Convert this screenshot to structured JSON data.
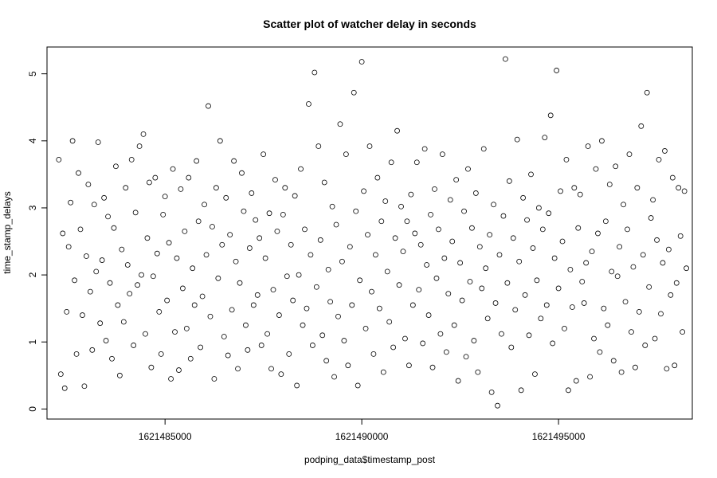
{
  "chart_data": {
    "type": "scatter",
    "title": "Scatter plot of watcher delay in seconds",
    "xlabel": "podping_data$timestamp_post",
    "ylabel": "time_stamp_delays",
    "xlim": [
      1621482000,
      1621498400
    ],
    "ylim": [
      -0.15,
      5.4
    ],
    "x_ticks": [
      1621485000,
      1621490000,
      1621495000
    ],
    "x_tick_labels": [
      "1621485000",
      "1621490000",
      "1621495000"
    ],
    "y_ticks": [
      0,
      1,
      2,
      3,
      4,
      5
    ],
    "y_tick_labels": [
      "0",
      "1",
      "2",
      "3",
      "4",
      "5"
    ],
    "grid": false,
    "legend": "none",
    "marker": "open-circle",
    "points": [
      [
        1621482300,
        3.72
      ],
      [
        1621482350,
        0.52
      ],
      [
        1621482400,
        2.62
      ],
      [
        1621482450,
        0.31
      ],
      [
        1621482500,
        1.45
      ],
      [
        1621482550,
        2.42
      ],
      [
        1621482600,
        3.08
      ],
      [
        1621482650,
        4.0
      ],
      [
        1621482700,
        1.92
      ],
      [
        1621482750,
        0.82
      ],
      [
        1621482800,
        3.52
      ],
      [
        1621482850,
        2.68
      ],
      [
        1621482900,
        1.4
      ],
      [
        1621482950,
        0.34
      ],
      [
        1621483000,
        2.28
      ],
      [
        1621483050,
        3.35
      ],
      [
        1621483100,
        1.75
      ],
      [
        1621483150,
        0.88
      ],
      [
        1621483200,
        3.05
      ],
      [
        1621483250,
        2.05
      ],
      [
        1621483300,
        3.98
      ],
      [
        1621483350,
        1.28
      ],
      [
        1621483400,
        2.22
      ],
      [
        1621483450,
        3.15
      ],
      [
        1621483500,
        1.02
      ],
      [
        1621483550,
        2.87
      ],
      [
        1621483600,
        1.88
      ],
      [
        1621483650,
        0.75
      ],
      [
        1621483700,
        2.7
      ],
      [
        1621483750,
        3.62
      ],
      [
        1621483800,
        1.55
      ],
      [
        1621483850,
        0.5
      ],
      [
        1621483900,
        2.38
      ],
      [
        1621483950,
        1.3
      ],
      [
        1621484000,
        3.3
      ],
      [
        1621484050,
        2.15
      ],
      [
        1621484100,
        1.72
      ],
      [
        1621484150,
        3.72
      ],
      [
        1621484200,
        0.95
      ],
      [
        1621484250,
        2.93
      ],
      [
        1621484300,
        1.85
      ],
      [
        1621484350,
        3.92
      ],
      [
        1621484400,
        2.0
      ],
      [
        1621484450,
        4.1
      ],
      [
        1621484500,
        1.12
      ],
      [
        1621484550,
        2.55
      ],
      [
        1621484600,
        3.38
      ],
      [
        1621484650,
        0.62
      ],
      [
        1621484700,
        1.98
      ],
      [
        1621484750,
        3.45
      ],
      [
        1621484800,
        2.32
      ],
      [
        1621484850,
        1.45
      ],
      [
        1621484900,
        0.82
      ],
      [
        1621484950,
        2.9
      ],
      [
        1621485000,
        3.17
      ],
      [
        1621485050,
        1.62
      ],
      [
        1621485100,
        2.48
      ],
      [
        1621485150,
        0.45
      ],
      [
        1621485200,
        3.58
      ],
      [
        1621485250,
        1.15
      ],
      [
        1621485300,
        2.25
      ],
      [
        1621485350,
        0.58
      ],
      [
        1621485400,
        3.28
      ],
      [
        1621485450,
        1.8
      ],
      [
        1621485500,
        2.65
      ],
      [
        1621485550,
        1.2
      ],
      [
        1621485600,
        3.45
      ],
      [
        1621485650,
        0.75
      ],
      [
        1621485700,
        2.1
      ],
      [
        1621485750,
        1.55
      ],
      [
        1621485800,
        3.7
      ],
      [
        1621485850,
        2.8
      ],
      [
        1621485900,
        0.92
      ],
      [
        1621485950,
        1.68
      ],
      [
        1621486000,
        3.05
      ],
      [
        1621486050,
        2.3
      ],
      [
        1621486100,
        4.52
      ],
      [
        1621486150,
        1.38
      ],
      [
        1621486200,
        2.72
      ],
      [
        1621486250,
        0.45
      ],
      [
        1621486300,
        3.3
      ],
      [
        1621486350,
        1.95
      ],
      [
        1621486400,
        4.0
      ],
      [
        1621486450,
        2.45
      ],
      [
        1621486500,
        1.08
      ],
      [
        1621486550,
        3.15
      ],
      [
        1621486600,
        0.8
      ],
      [
        1621486650,
        2.6
      ],
      [
        1621486700,
        1.48
      ],
      [
        1621486750,
        3.7
      ],
      [
        1621486800,
        2.2
      ],
      [
        1621486850,
        0.6
      ],
      [
        1621486900,
        1.88
      ],
      [
        1621486950,
        3.52
      ],
      [
        1621487000,
        2.95
      ],
      [
        1621487050,
        1.25
      ],
      [
        1621487100,
        0.88
      ],
      [
        1621487150,
        2.4
      ],
      [
        1621487200,
        3.22
      ],
      [
        1621487250,
        1.55
      ],
      [
        1621487300,
        2.82
      ],
      [
        1621487350,
        1.7
      ],
      [
        1621487400,
        2.55
      ],
      [
        1621487450,
        0.95
      ],
      [
        1621487500,
        3.8
      ],
      [
        1621487550,
        2.25
      ],
      [
        1621487600,
        1.12
      ],
      [
        1621487650,
        2.92
      ],
      [
        1621487700,
        0.6
      ],
      [
        1621487750,
        1.78
      ],
      [
        1621487800,
        3.42
      ],
      [
        1621487850,
        2.65
      ],
      [
        1621487900,
        1.4
      ],
      [
        1621487950,
        0.52
      ],
      [
        1621488000,
        2.9
      ],
      [
        1621488050,
        3.3
      ],
      [
        1621488100,
        1.98
      ],
      [
        1621488150,
        0.82
      ],
      [
        1621488200,
        2.45
      ],
      [
        1621488250,
        1.62
      ],
      [
        1621488300,
        3.18
      ],
      [
        1621488350,
        0.35
      ],
      [
        1621488400,
        2.0
      ],
      [
        1621488450,
        3.58
      ],
      [
        1621488500,
        1.25
      ],
      [
        1621488550,
        2.68
      ],
      [
        1621488600,
        1.5
      ],
      [
        1621488650,
        4.55
      ],
      [
        1621488700,
        2.3
      ],
      [
        1621488750,
        0.95
      ],
      [
        1621488800,
        5.02
      ],
      [
        1621488850,
        1.82
      ],
      [
        1621488900,
        3.92
      ],
      [
        1621488950,
        2.52
      ],
      [
        1621489000,
        1.1
      ],
      [
        1621489050,
        3.38
      ],
      [
        1621489100,
        0.72
      ],
      [
        1621489150,
        2.08
      ],
      [
        1621489200,
        1.6
      ],
      [
        1621489250,
        3.02
      ],
      [
        1621489300,
        0.48
      ],
      [
        1621489350,
        2.75
      ],
      [
        1621489400,
        1.38
      ],
      [
        1621489450,
        4.25
      ],
      [
        1621489500,
        2.2
      ],
      [
        1621489550,
        1.02
      ],
      [
        1621489600,
        3.8
      ],
      [
        1621489650,
        0.65
      ],
      [
        1621489700,
        2.42
      ],
      [
        1621489750,
        1.55
      ],
      [
        1621489800,
        4.72
      ],
      [
        1621489850,
        2.95
      ],
      [
        1621489900,
        0.35
      ],
      [
        1621489950,
        1.92
      ],
      [
        1621490000,
        5.18
      ],
      [
        1621490050,
        3.25
      ],
      [
        1621490100,
        1.2
      ],
      [
        1621490150,
        2.6
      ],
      [
        1621490200,
        3.92
      ],
      [
        1621490250,
        1.75
      ],
      [
        1621490300,
        0.82
      ],
      [
        1621490350,
        2.3
      ],
      [
        1621490400,
        3.45
      ],
      [
        1621490450,
        1.5
      ],
      [
        1621490500,
        2.8
      ],
      [
        1621490550,
        0.55
      ],
      [
        1621490600,
        3.1
      ],
      [
        1621490650,
        2.05
      ],
      [
        1621490700,
        1.3
      ],
      [
        1621490750,
        3.68
      ],
      [
        1621490800,
        0.92
      ],
      [
        1621490850,
        2.55
      ],
      [
        1621490900,
        4.15
      ],
      [
        1621490950,
        1.85
      ],
      [
        1621491000,
        3.02
      ],
      [
        1621491050,
        2.35
      ],
      [
        1621491100,
        1.05
      ],
      [
        1621491150,
        2.8
      ],
      [
        1621491200,
        0.65
      ],
      [
        1621491250,
        3.2
      ],
      [
        1621491300,
        1.55
      ],
      [
        1621491350,
        2.62
      ],
      [
        1621491400,
        3.68
      ],
      [
        1621491450,
        1.78
      ],
      [
        1621491500,
        2.45
      ],
      [
        1621491550,
        0.98
      ],
      [
        1621491600,
        3.88
      ],
      [
        1621491650,
        2.15
      ],
      [
        1621491700,
        1.4
      ],
      [
        1621491750,
        2.9
      ],
      [
        1621491800,
        0.62
      ],
      [
        1621491850,
        3.28
      ],
      [
        1621491900,
        1.95
      ],
      [
        1621491950,
        2.68
      ],
      [
        1621492000,
        1.12
      ],
      [
        1621492050,
        3.8
      ],
      [
        1621492100,
        2.25
      ],
      [
        1621492150,
        0.85
      ],
      [
        1621492200,
        1.72
      ],
      [
        1621492250,
        3.12
      ],
      [
        1621492300,
        2.5
      ],
      [
        1621492350,
        1.25
      ],
      [
        1621492400,
        3.42
      ],
      [
        1621492450,
        0.42
      ],
      [
        1621492500,
        2.18
      ],
      [
        1621492550,
        1.62
      ],
      [
        1621492600,
        2.95
      ],
      [
        1621492650,
        0.78
      ],
      [
        1621492700,
        3.58
      ],
      [
        1621492750,
        1.9
      ],
      [
        1621492800,
        2.7
      ],
      [
        1621492850,
        1.02
      ],
      [
        1621492900,
        3.22
      ],
      [
        1621492950,
        0.55
      ],
      [
        1621493000,
        2.42
      ],
      [
        1621493050,
        1.8
      ],
      [
        1621493100,
        3.88
      ],
      [
        1621493150,
        2.1
      ],
      [
        1621493200,
        1.35
      ],
      [
        1621493250,
        2.6
      ],
      [
        1621493300,
        0.25
      ],
      [
        1621493350,
        3.05
      ],
      [
        1621493400,
        1.58
      ],
      [
        1621493450,
        0.05
      ],
      [
        1621493500,
        2.3
      ],
      [
        1621493550,
        1.12
      ],
      [
        1621493600,
        2.88
      ],
      [
        1621493650,
        5.22
      ],
      [
        1621493700,
        1.88
      ],
      [
        1621493750,
        3.4
      ],
      [
        1621493800,
        0.92
      ],
      [
        1621493850,
        2.55
      ],
      [
        1621493900,
        1.48
      ],
      [
        1621493950,
        4.02
      ],
      [
        1621494000,
        2.2
      ],
      [
        1621494050,
        0.28
      ],
      [
        1621494100,
        3.15
      ],
      [
        1621494150,
        1.7
      ],
      [
        1621494200,
        2.82
      ],
      [
        1621494250,
        1.1
      ],
      [
        1621494300,
        3.5
      ],
      [
        1621494350,
        2.4
      ],
      [
        1621494400,
        0.52
      ],
      [
        1621494450,
        1.92
      ],
      [
        1621494500,
        3.0
      ],
      [
        1621494550,
        1.35
      ],
      [
        1621494600,
        2.68
      ],
      [
        1621494650,
        4.05
      ],
      [
        1621494700,
        1.55
      ],
      [
        1621494750,
        2.92
      ],
      [
        1621494800,
        4.38
      ],
      [
        1621494850,
        0.98
      ],
      [
        1621494900,
        2.25
      ],
      [
        1621494950,
        5.05
      ],
      [
        1621495000,
        1.8
      ],
      [
        1621495050,
        3.25
      ],
      [
        1621495100,
        2.5
      ],
      [
        1621495150,
        1.2
      ],
      [
        1621495200,
        3.72
      ],
      [
        1621495250,
        0.28
      ],
      [
        1621495300,
        2.08
      ],
      [
        1621495350,
        1.52
      ],
      [
        1621495400,
        3.3
      ],
      [
        1621495450,
        0.42
      ],
      [
        1621495500,
        2.7
      ],
      [
        1621495550,
        3.2
      ],
      [
        1621495600,
        1.9
      ],
      [
        1621495650,
        1.58
      ],
      [
        1621495700,
        2.18
      ],
      [
        1621495750,
        3.92
      ],
      [
        1621495800,
        0.48
      ],
      [
        1621495850,
        2.35
      ],
      [
        1621495900,
        1.05
      ],
      [
        1621495950,
        3.58
      ],
      [
        1621496000,
        2.62
      ],
      [
        1621496050,
        0.85
      ],
      [
        1621496100,
        4.0
      ],
      [
        1621496150,
        1.5
      ],
      [
        1621496200,
        2.8
      ],
      [
        1621496250,
        1.25
      ],
      [
        1621496300,
        3.35
      ],
      [
        1621496350,
        2.05
      ],
      [
        1621496400,
        0.72
      ],
      [
        1621496450,
        3.62
      ],
      [
        1621496500,
        1.98
      ],
      [
        1621496550,
        2.42
      ],
      [
        1621496600,
        0.55
      ],
      [
        1621496650,
        3.05
      ],
      [
        1621496700,
        1.6
      ],
      [
        1621496750,
        2.68
      ],
      [
        1621496800,
        3.8
      ],
      [
        1621496850,
        1.15
      ],
      [
        1621496900,
        2.12
      ],
      [
        1621496950,
        0.62
      ],
      [
        1621497000,
        3.3
      ],
      [
        1621497050,
        1.45
      ],
      [
        1621497100,
        4.22
      ],
      [
        1621497150,
        2.3
      ],
      [
        1621497200,
        0.95
      ],
      [
        1621497250,
        4.72
      ],
      [
        1621497300,
        1.82
      ],
      [
        1621497350,
        2.85
      ],
      [
        1621497400,
        3.12
      ],
      [
        1621497450,
        1.05
      ],
      [
        1621497500,
        2.52
      ],
      [
        1621497550,
        3.72
      ],
      [
        1621497600,
        1.42
      ],
      [
        1621497650,
        2.18
      ],
      [
        1621497700,
        3.85
      ],
      [
        1621497750,
        0.6
      ],
      [
        1621497800,
        2.38
      ],
      [
        1621497850,
        1.7
      ],
      [
        1621497900,
        3.45
      ],
      [
        1621497950,
        0.65
      ],
      [
        1621498000,
        1.88
      ],
      [
        1621498050,
        3.3
      ],
      [
        1621498100,
        2.58
      ],
      [
        1621498150,
        1.15
      ],
      [
        1621498200,
        3.25
      ],
      [
        1621498250,
        2.1
      ]
    ]
  }
}
